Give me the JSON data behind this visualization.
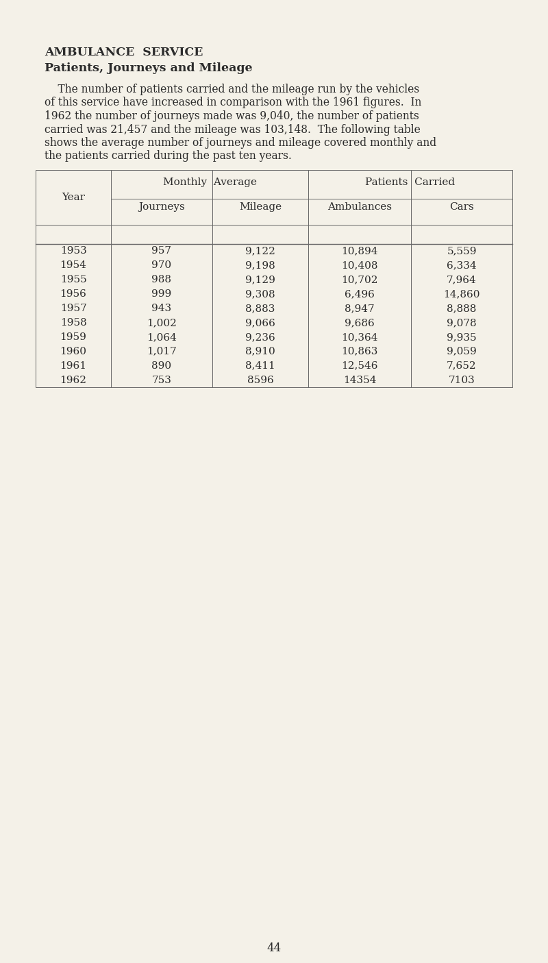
{
  "title1": "AMBULANCE  SERVICE",
  "title2": "Patients, Journeys and Mileage",
  "col_header1": "Monthly  Average",
  "col_header2": "Patients  Carried",
  "sub_header_year": "Year",
  "sub_header_journeys": "Journeys",
  "sub_header_mileage": "Mileage",
  "sub_header_ambulances": "Ambulances",
  "sub_header_cars": "Cars",
  "years": [
    "1953",
    "1954",
    "1955",
    "1956",
    "1957",
    "1958",
    "1959",
    "1960",
    "1961",
    "1962"
  ],
  "journeys": [
    "957",
    "970",
    "988",
    "999",
    "943",
    "1,002",
    "1,064",
    "1,017",
    "890",
    "753"
  ],
  "mileage": [
    "9,122",
    "9,198",
    "9,129",
    "9,308",
    "8,883",
    "9,066",
    "9,236",
    "8,910",
    "8,411",
    "8596"
  ],
  "ambulances": [
    "10,894",
    "10,408",
    "10,702",
    "6,496",
    "8,947",
    "9,686",
    "10,364",
    "10,863",
    "12,546",
    "14354"
  ],
  "cars": [
    "5,559",
    "6,334",
    "7,964",
    "14,860",
    "8,888",
    "9,078",
    "9,935",
    "9,059",
    "7,652",
    "7103"
  ],
  "page_number": "44",
  "bg_color": "#f4f1e8",
  "text_color": "#2b2b2b",
  "line_color": "#666666",
  "para_line1": "    The number of patients carried and the mileage run by the vehicles",
  "para_line2": "of this service have increased in comparison with the 1961 figures.  In",
  "para_line3": "1962 the number of journeys made was 9,040, the number of patients",
  "para_line4": "carried was 21,457 and the mileage was 103,148.  The following table",
  "para_line5": "shows the average number of journeys and mileage covered monthly and",
  "para_line6": "the patients carried during the past ten years."
}
